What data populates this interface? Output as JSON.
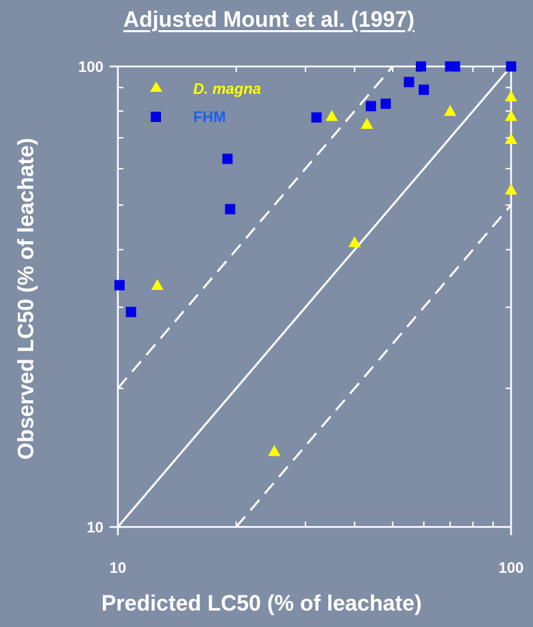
{
  "chart_data": {
    "type": "scatter",
    "title": "Adjusted Mount et al. (1997)",
    "xlabel": "Predicted LC50  (% of leachate)",
    "ylabel": "Observed LC50  (% of leachate)",
    "x_scale": "log",
    "y_scale": "log",
    "xlim": [
      10,
      100
    ],
    "ylim": [
      10,
      100
    ],
    "x_tick_labels": [
      "10",
      "100"
    ],
    "y_tick_labels": [
      "10",
      "100"
    ],
    "grid": false,
    "legend_position": "top-left",
    "reference_lines": [
      {
        "style": "solid",
        "points": [
          [
            10,
            10
          ],
          [
            100,
            100
          ]
        ]
      },
      {
        "style": "dashed",
        "points": [
          [
            10,
            20
          ],
          [
            50,
            100
          ]
        ]
      },
      {
        "style": "dashed",
        "points": [
          [
            20,
            10
          ],
          [
            100,
            50
          ]
        ]
      }
    ],
    "series": [
      {
        "name": "D. magna",
        "marker": "triangle",
        "color": "#ffff00",
        "points": [
          [
            12.6,
            33.5
          ],
          [
            25,
            14.6
          ],
          [
            35,
            78
          ],
          [
            40,
            41.5
          ],
          [
            43,
            75
          ],
          [
            70,
            80
          ],
          [
            100,
            86
          ],
          [
            100,
            78
          ],
          [
            100,
            69.5
          ],
          [
            100,
            54
          ]
        ]
      },
      {
        "name": "FHM",
        "marker": "square",
        "color": "#0000e6",
        "points": [
          [
            10.1,
            33.5
          ],
          [
            10.8,
            29.3
          ],
          [
            19,
            63
          ],
          [
            19.3,
            49
          ],
          [
            32,
            77.5
          ],
          [
            44,
            82
          ],
          [
            48,
            83
          ],
          [
            55,
            92.5
          ],
          [
            59,
            100
          ],
          [
            60,
            89
          ],
          [
            70,
            100
          ],
          [
            72,
            100
          ],
          [
            100,
            100
          ]
        ]
      }
    ]
  },
  "legend": {
    "label_colors": [
      "#ffff00",
      "#1e5fe6"
    ]
  }
}
